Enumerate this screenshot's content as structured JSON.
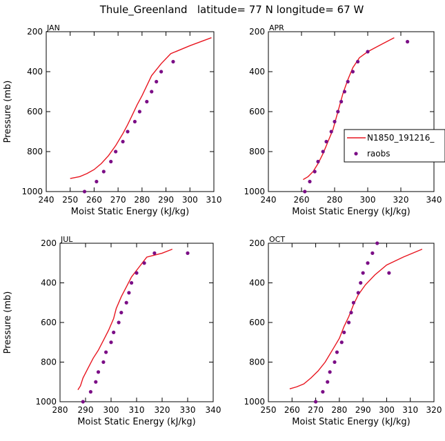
{
  "figure_title": "Thule_Greenland   latitude= 77 N longitude= 67 W",
  "colors": {
    "model": "#e8141e",
    "obs": "#7b0e86",
    "axis": "#000000"
  },
  "legend": {
    "model_label": "N1850_191216_",
    "obs_label": "raobs"
  },
  "chart_data": [
    {
      "type": "line",
      "panel": "JAN",
      "xlabel": "Moist Static Energy (kJ/kg)",
      "ylabel": "Pressure (mb)",
      "xlim": [
        240,
        310
      ],
      "ylim": [
        1000,
        200
      ],
      "xticks": [
        240,
        250,
        260,
        270,
        280,
        290,
        300,
        310
      ],
      "yticks": [
        200,
        400,
        600,
        800,
        1000
      ],
      "series": [
        {
          "name": "N1850_191216_",
          "style": "line",
          "x": [
            250,
            254,
            257,
            260,
            263,
            266,
            269,
            272,
            274,
            276,
            278,
            280,
            282,
            284,
            286,
            288,
            292,
            300,
            309
          ],
          "y": [
            935,
            925,
            910,
            890,
            860,
            820,
            770,
            710,
            665,
            615,
            565,
            520,
            470,
            420,
            390,
            360,
            310,
            270,
            230
          ]
        },
        {
          "name": "raobs",
          "style": "markers",
          "x": [
            256,
            261,
            264,
            267,
            269,
            272,
            274,
            277,
            279,
            282,
            284,
            286,
            288,
            293
          ],
          "y": [
            1000,
            950,
            900,
            850,
            800,
            750,
            700,
            650,
            600,
            550,
            500,
            450,
            400,
            350
          ]
        }
      ]
    },
    {
      "type": "line",
      "panel": "APR",
      "xlabel": "Moist Static Energy (kJ/kg)",
      "ylabel": "",
      "xlim": [
        240,
        340
      ],
      "ylim": [
        1000,
        200
      ],
      "xticks": [
        240,
        260,
        280,
        300,
        320,
        340
      ],
      "yticks": [
        200,
        400,
        600,
        800,
        1000
      ],
      "series": [
        {
          "name": "N1850_191216_",
          "style": "line",
          "x": [
            261,
            264,
            267,
            270,
            273,
            276,
            279,
            281,
            283,
            285,
            288,
            291,
            295,
            300,
            308,
            316
          ],
          "y": [
            940,
            925,
            900,
            860,
            810,
            750,
            690,
            630,
            570,
            510,
            440,
            380,
            330,
            300,
            265,
            230
          ]
        },
        {
          "name": "raobs",
          "style": "markers",
          "x": [
            262,
            265,
            268,
            270,
            273,
            275,
            278,
            280,
            282,
            284,
            286,
            288,
            291,
            294,
            300,
            324
          ],
          "y": [
            1000,
            950,
            900,
            850,
            800,
            750,
            700,
            650,
            600,
            550,
            500,
            450,
            400,
            350,
            300,
            250
          ]
        }
      ]
    },
    {
      "type": "line",
      "panel": "JUL",
      "xlabel": "Moist Static Energy (kJ/kg)",
      "ylabel": "Pressure (mb)",
      "xlim": [
        280,
        340
      ],
      "ylim": [
        1000,
        200
      ],
      "xticks": [
        280,
        290,
        300,
        310,
        320,
        330,
        340
      ],
      "yticks": [
        200,
        400,
        600,
        800,
        1000
      ],
      "series": [
        {
          "name": "N1850_191216_",
          "style": "line",
          "x": [
            287,
            288,
            289,
            291,
            293,
            295,
            297,
            299,
            301,
            302,
            304,
            306,
            308,
            311,
            314,
            320,
            324
          ],
          "y": [
            940,
            920,
            880,
            830,
            780,
            740,
            690,
            640,
            580,
            530,
            470,
            420,
            370,
            320,
            270,
            250,
            230
          ]
        },
        {
          "name": "raobs",
          "style": "markers",
          "x": [
            289,
            292,
            294,
            295,
            297,
            298,
            300,
            301,
            303,
            304,
            306,
            307,
            308,
            310,
            313,
            317,
            330
          ],
          "y": [
            1000,
            950,
            900,
            850,
            800,
            750,
            700,
            650,
            600,
            550,
            500,
            450,
            400,
            350,
            300,
            250,
            250
          ]
        }
      ]
    },
    {
      "type": "line",
      "panel": "OCT",
      "xlabel": "Moist Static Energy (kJ/kg)",
      "ylabel": "",
      "xlim": [
        250,
        320
      ],
      "ylim": [
        1000,
        200
      ],
      "xticks": [
        250,
        260,
        270,
        280,
        290,
        300,
        310,
        320
      ],
      "yticks": [
        200,
        400,
        600,
        800,
        1000
      ],
      "series": [
        {
          "name": "N1850_191216_",
          "style": "line",
          "x": [
            259,
            262,
            265,
            268,
            271,
            274,
            277,
            280,
            282,
            284,
            286,
            288,
            291,
            295,
            300,
            307,
            315
          ],
          "y": [
            935,
            925,
            910,
            880,
            845,
            800,
            740,
            680,
            620,
            570,
            510,
            460,
            410,
            360,
            310,
            270,
            230
          ]
        },
        {
          "name": "raobs",
          "style": "markers",
          "x": [
            270,
            273,
            275,
            276,
            278,
            279,
            281,
            282,
            284,
            285,
            286,
            288,
            289,
            290,
            292,
            294,
            296,
            301
          ],
          "y": [
            1000,
            950,
            900,
            850,
            800,
            750,
            700,
            650,
            600,
            550,
            500,
            450,
            400,
            350,
            300,
            250,
            200,
            350
          ]
        }
      ]
    }
  ]
}
